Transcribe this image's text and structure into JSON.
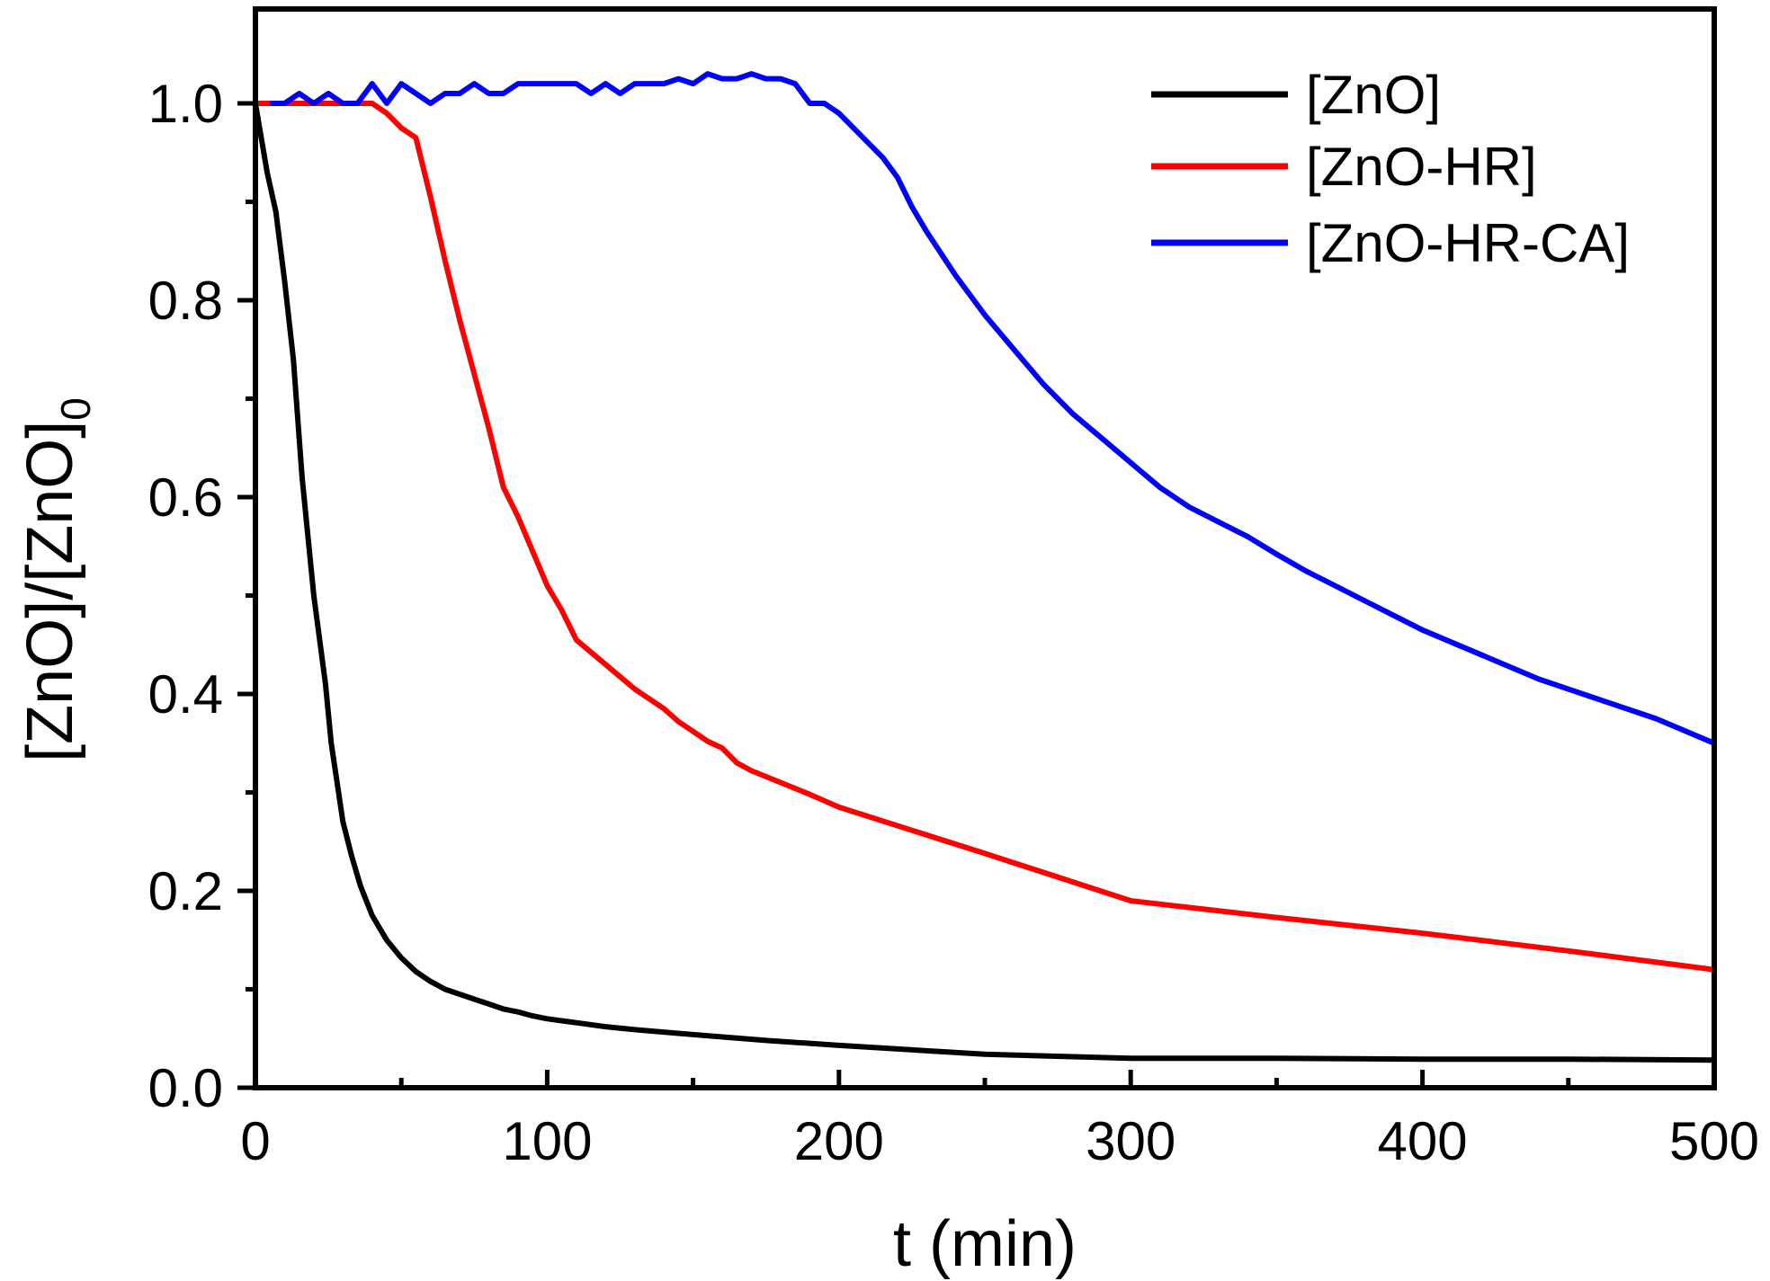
{
  "chart_data": {
    "type": "line",
    "title": "",
    "xlabel": "t (min)",
    "ylabel_main": "[ZnO]/[ZnO]",
    "ylabel_sub": "0",
    "xlim": [
      0,
      500
    ],
    "ylim": [
      0,
      1.1
    ],
    "xticks": [
      0,
      100,
      200,
      300,
      400,
      500
    ],
    "xtick_labels": [
      "0",
      "100",
      "200",
      "300",
      "400",
      "500"
    ],
    "yticks": [
      0.0,
      0.2,
      0.4,
      0.6,
      0.8,
      1.0
    ],
    "ytick_labels": [
      "0.0",
      "0.2",
      "0.4",
      "0.6",
      "0.8",
      "1.0"
    ],
    "grid": false,
    "legend_position": "top-right",
    "series": [
      {
        "name": "[ZnO]",
        "color": "#000000",
        "x": [
          0,
          4,
          7,
          10,
          13,
          16,
          20,
          24,
          26,
          28,
          30,
          33,
          36,
          40,
          45,
          50,
          55,
          60,
          65,
          70,
          75,
          80,
          85,
          90,
          95,
          100,
          110,
          120,
          130,
          150,
          175,
          200,
          250,
          300,
          350,
          400,
          450,
          500
        ],
        "y": [
          1.0,
          0.93,
          0.89,
          0.82,
          0.74,
          0.62,
          0.5,
          0.41,
          0.35,
          0.31,
          0.27,
          0.235,
          0.205,
          0.175,
          0.15,
          0.132,
          0.118,
          0.108,
          0.1,
          0.095,
          0.09,
          0.085,
          0.08,
          0.077,
          0.073,
          0.07,
          0.066,
          0.062,
          0.059,
          0.054,
          0.048,
          0.043,
          0.034,
          0.03,
          0.03,
          0.029,
          0.029,
          0.028
        ]
      },
      {
        "name": "[ZnO-HR]",
        "color": "#ff0000",
        "x": [
          0,
          5,
          10,
          15,
          20,
          25,
          30,
          35,
          40,
          45,
          50,
          55,
          60,
          65,
          70,
          75,
          80,
          85,
          90,
          95,
          100,
          105,
          110,
          120,
          130,
          140,
          145,
          150,
          155,
          160,
          165,
          170,
          180,
          190,
          200,
          250,
          300,
          350,
          400,
          450,
          500
        ],
        "y": [
          1.0,
          1.0,
          1.0,
          1.0,
          1.0,
          1.0,
          1.0,
          1.0,
          1.0,
          0.99,
          0.975,
          0.965,
          0.905,
          0.84,
          0.78,
          0.725,
          0.67,
          0.61,
          0.58,
          0.545,
          0.51,
          0.485,
          0.455,
          0.43,
          0.405,
          0.385,
          0.372,
          0.362,
          0.352,
          0.345,
          0.33,
          0.322,
          0.31,
          0.298,
          0.285,
          0.238,
          0.19,
          0.173,
          0.157,
          0.139,
          0.12
        ]
      },
      {
        "name": "[ZnO-HR-CA]",
        "color": "#0000ff",
        "x": [
          5,
          10,
          15,
          20,
          25,
          30,
          35,
          40,
          45,
          50,
          55,
          60,
          65,
          70,
          75,
          80,
          85,
          90,
          95,
          100,
          105,
          110,
          115,
          120,
          125,
          130,
          135,
          140,
          145,
          150,
          155,
          160,
          165,
          170,
          175,
          180,
          185,
          190,
          195,
          200,
          205,
          210,
          215,
          220,
          225,
          230,
          240,
          250,
          260,
          270,
          280,
          290,
          300,
          310,
          320,
          330,
          340,
          350,
          360,
          370,
          380,
          390,
          400,
          420,
          440,
          460,
          480,
          500
        ],
        "y": [
          1.0,
          1.0,
          1.01,
          1.0,
          1.01,
          1.0,
          1.0,
          1.02,
          1.0,
          1.02,
          1.01,
          1.0,
          1.01,
          1.01,
          1.02,
          1.01,
          1.01,
          1.02,
          1.02,
          1.02,
          1.02,
          1.02,
          1.01,
          1.02,
          1.01,
          1.02,
          1.02,
          1.02,
          1.025,
          1.02,
          1.03,
          1.025,
          1.025,
          1.03,
          1.025,
          1.025,
          1.02,
          1.0,
          1.0,
          0.99,
          0.975,
          0.96,
          0.945,
          0.925,
          0.895,
          0.87,
          0.825,
          0.785,
          0.75,
          0.715,
          0.685,
          0.66,
          0.635,
          0.61,
          0.59,
          0.575,
          0.56,
          0.542,
          0.525,
          0.51,
          0.495,
          0.48,
          0.465,
          0.44,
          0.415,
          0.395,
          0.375,
          0.35
        ]
      }
    ]
  }
}
